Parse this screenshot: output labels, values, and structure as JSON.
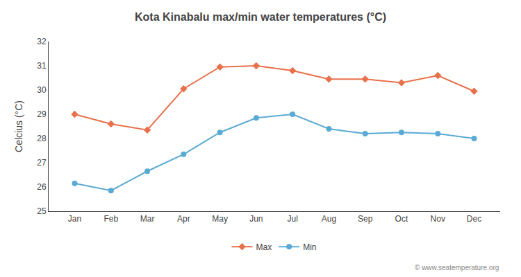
{
  "chart_data": {
    "type": "line",
    "title": "Kota Kinabalu max/min water temperatures (°C)",
    "ylabel": "Celcius (°C)",
    "categories": [
      "Jan",
      "Feb",
      "Mar",
      "Apr",
      "May",
      "Jun",
      "Jul",
      "Aug",
      "Sep",
      "Oct",
      "Nov",
      "Dec"
    ],
    "series": [
      {
        "name": "Max",
        "color": "#e8704a",
        "marker": "diamond",
        "values": [
          29.0,
          28.6,
          28.35,
          30.05,
          30.95,
          31.0,
          30.8,
          30.45,
          30.45,
          30.3,
          30.6,
          29.95
        ]
      },
      {
        "name": "Min",
        "color": "#5aaad4",
        "marker": "circle",
        "values": [
          26.15,
          25.85,
          26.65,
          27.35,
          28.25,
          28.85,
          29.0,
          28.4,
          28.2,
          28.25,
          28.2,
          28.0
        ]
      }
    ],
    "ylim": [
      25,
      32
    ],
    "yticks": [
      25,
      26,
      27,
      28,
      29,
      30,
      31,
      32
    ],
    "grid": false,
    "legend": "bottom",
    "annotations": [
      "© www.seatemperature.org"
    ]
  }
}
